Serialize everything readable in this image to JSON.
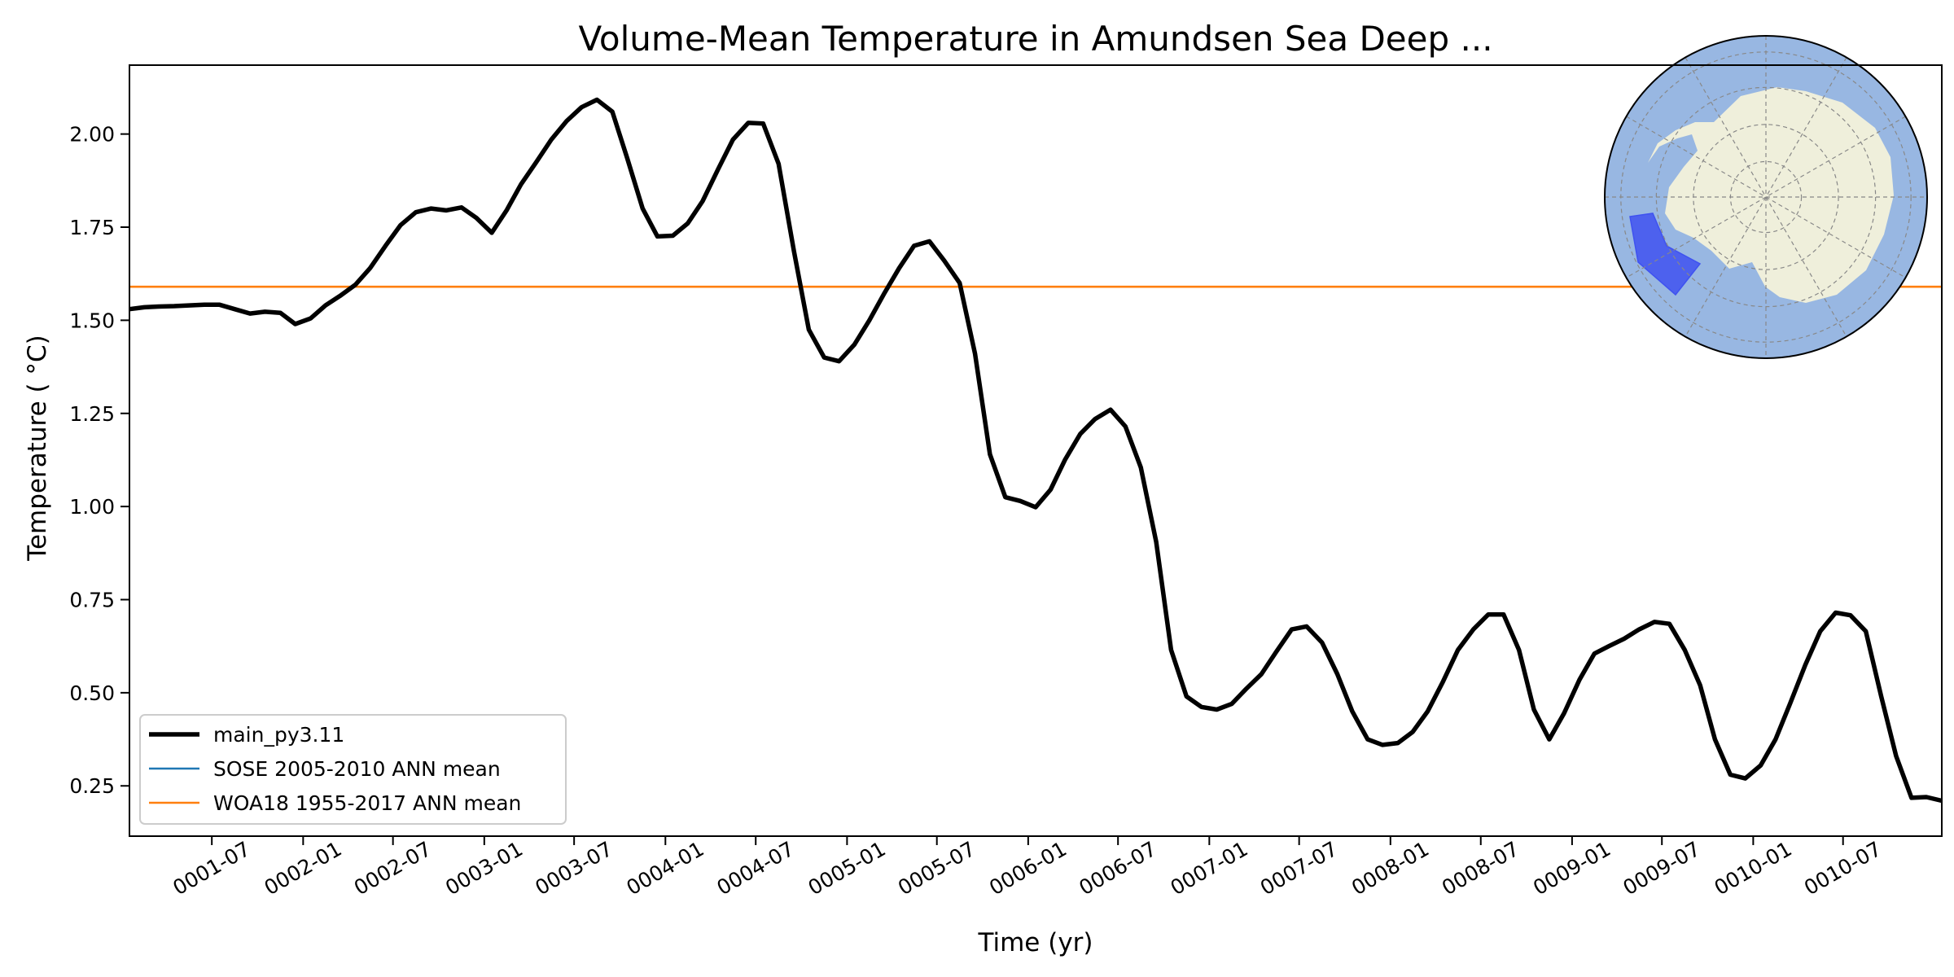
{
  "chart_data": {
    "type": "line",
    "title": "Volume-Mean Temperature in Amundsen Sea Deep ...",
    "xlabel": "Time (yr)",
    "ylabel": "Temperature ( °C)",
    "x_axis_kind": "date (yyyy-mm)",
    "xlim": [
      "0001-01-16",
      "0011-01-16"
    ],
    "ylim": [
      0.115,
      2.185
    ],
    "grid": false,
    "legend_placement": "lower-left",
    "x_ticks": [
      "0001-07",
      "0002-01",
      "0002-07",
      "0003-01",
      "0003-07",
      "0004-01",
      "0004-07",
      "0005-01",
      "0005-07",
      "0006-01",
      "0006-07",
      "0007-01",
      "0007-07",
      "0008-01",
      "0008-07",
      "0009-01",
      "0009-07",
      "0010-01",
      "0010-07"
    ],
    "y_ticks": [
      "0.25",
      "0.50",
      "0.75",
      "1.00",
      "1.25",
      "1.50",
      "1.75",
      "2.00"
    ],
    "series": [
      {
        "name": "main_py3.11",
        "color": "#000000",
        "points": [
          [
            "0001-01-16",
            1.53
          ],
          [
            "0001-02-15",
            1.535
          ],
          [
            "0001-03-16",
            1.537
          ],
          [
            "0001-04-16",
            1.538
          ],
          [
            "0001-05-16",
            1.54
          ],
          [
            "0001-06-16",
            1.542
          ],
          [
            "0001-07-16",
            1.542
          ],
          [
            "0001-08-16",
            1.53
          ],
          [
            "0001-09-16",
            1.518
          ],
          [
            "0001-10-16",
            1.523
          ],
          [
            "0001-11-16",
            1.52
          ],
          [
            "0001-12-16",
            1.49
          ],
          [
            "0002-01-16",
            1.505
          ],
          [
            "0002-02-15",
            1.54
          ],
          [
            "0002-03-16",
            1.565
          ],
          [
            "0002-04-16",
            1.595
          ],
          [
            "0002-05-16",
            1.64
          ],
          [
            "0002-06-16",
            1.7
          ],
          [
            "0002-07-16",
            1.755
          ],
          [
            "0002-08-16",
            1.79
          ],
          [
            "0002-09-16",
            1.8
          ],
          [
            "0002-10-16",
            1.795
          ],
          [
            "0002-11-16",
            1.803
          ],
          [
            "0002-12-16",
            1.775
          ],
          [
            "0003-01-16",
            1.735
          ],
          [
            "0003-02-15",
            1.795
          ],
          [
            "0003-03-16",
            1.865
          ],
          [
            "0003-04-16",
            1.925
          ],
          [
            "0003-05-16",
            1.985
          ],
          [
            "0003-06-16",
            2.035
          ],
          [
            "0003-07-16",
            2.072
          ],
          [
            "0003-08-16",
            2.092
          ],
          [
            "0003-09-16",
            2.06
          ],
          [
            "0003-10-16",
            1.935
          ],
          [
            "0003-11-16",
            1.8
          ],
          [
            "0003-12-16",
            1.725
          ],
          [
            "0004-01-16",
            1.727
          ],
          [
            "0004-02-15",
            1.76
          ],
          [
            "0004-03-16",
            1.82
          ],
          [
            "0004-04-16",
            1.905
          ],
          [
            "0004-05-16",
            1.985
          ],
          [
            "0004-06-16",
            2.03
          ],
          [
            "0004-07-16",
            2.028
          ],
          [
            "0004-08-16",
            1.92
          ],
          [
            "0004-09-16",
            1.685
          ],
          [
            "0004-10-16",
            1.475
          ],
          [
            "0004-11-16",
            1.4
          ],
          [
            "0004-12-16",
            1.39
          ],
          [
            "0005-01-16",
            1.435
          ],
          [
            "0005-02-15",
            1.5
          ],
          [
            "0005-03-16",
            1.57
          ],
          [
            "0005-04-16",
            1.64
          ],
          [
            "0005-05-16",
            1.7
          ],
          [
            "0005-06-16",
            1.712
          ],
          [
            "0005-07-16",
            1.66
          ],
          [
            "0005-08-16",
            1.6
          ],
          [
            "0005-09-16",
            1.41
          ],
          [
            "0005-10-16",
            1.14
          ],
          [
            "0005-11-16",
            1.025
          ],
          [
            "0005-12-16",
            1.015
          ],
          [
            "0006-01-16",
            0.998
          ],
          [
            "0006-02-15",
            1.045
          ],
          [
            "0006-03-16",
            1.125
          ],
          [
            "0006-04-16",
            1.195
          ],
          [
            "0006-05-16",
            1.235
          ],
          [
            "0006-06-16",
            1.26
          ],
          [
            "0006-07-16",
            1.215
          ],
          [
            "0006-08-16",
            1.105
          ],
          [
            "0006-09-16",
            0.905
          ],
          [
            "0006-10-16",
            0.615
          ],
          [
            "0006-11-16",
            0.49
          ],
          [
            "0006-12-16",
            0.462
          ],
          [
            "0007-01-16",
            0.455
          ],
          [
            "0007-02-15",
            0.47
          ],
          [
            "0007-03-16",
            0.51
          ],
          [
            "0007-04-16",
            0.55
          ],
          [
            "0007-05-16",
            0.61
          ],
          [
            "0007-06-16",
            0.67
          ],
          [
            "0007-07-16",
            0.678
          ],
          [
            "0007-08-16",
            0.635
          ],
          [
            "0007-09-16",
            0.55
          ],
          [
            "0007-10-16",
            0.45
          ],
          [
            "0007-11-16",
            0.375
          ],
          [
            "0007-12-16",
            0.36
          ],
          [
            "0008-01-16",
            0.365
          ],
          [
            "0008-02-15",
            0.395
          ],
          [
            "0008-03-16",
            0.45
          ],
          [
            "0008-04-16",
            0.53
          ],
          [
            "0008-05-16",
            0.615
          ],
          [
            "0008-06-16",
            0.67
          ],
          [
            "0008-07-16",
            0.71
          ],
          [
            "0008-08-16",
            0.71
          ],
          [
            "0008-09-16",
            0.615
          ],
          [
            "0008-10-16",
            0.455
          ],
          [
            "0008-11-16",
            0.375
          ],
          [
            "0008-12-16",
            0.445
          ],
          [
            "0009-01-16",
            0.535
          ],
          [
            "0009-02-15",
            0.605
          ],
          [
            "0009-03-16",
            0.625
          ],
          [
            "0009-04-16",
            0.645
          ],
          [
            "0009-05-16",
            0.67
          ],
          [
            "0009-06-16",
            0.69
          ],
          [
            "0009-07-16",
            0.685
          ],
          [
            "0009-08-16",
            0.615
          ],
          [
            "0009-09-16",
            0.52
          ],
          [
            "0009-10-16",
            0.375
          ],
          [
            "0009-11-16",
            0.28
          ],
          [
            "0009-12-16",
            0.27
          ],
          [
            "0010-01-16",
            0.305
          ],
          [
            "0010-02-15",
            0.375
          ],
          [
            "0010-03-16",
            0.47
          ],
          [
            "0010-04-16",
            0.575
          ],
          [
            "0010-05-16",
            0.665
          ],
          [
            "0010-06-16",
            0.715
          ],
          [
            "0010-07-16",
            0.708
          ],
          [
            "0010-08-16",
            0.665
          ],
          [
            "0010-09-16",
            0.49
          ],
          [
            "0010-10-16",
            0.33
          ],
          [
            "0010-11-16",
            0.218
          ],
          [
            "0010-12-16",
            0.22
          ],
          [
            "0011-01-16",
            0.21
          ]
        ]
      },
      {
        "name": "SOSE 2005-2010 ANN mean",
        "color": "#1f77b4",
        "points": []
      },
      {
        "name": "WOA18 1955-2017 ANN mean",
        "color": "#ff7f0e",
        "constant_value": 1.59
      }
    ],
    "inset_map": {
      "description_kind": "south-polar stereographic map",
      "ocean_color": "#98b7e2",
      "land_color": "#efefdb",
      "region_color": "#3f52f0",
      "region_label": "Amundsen Sea"
    }
  }
}
